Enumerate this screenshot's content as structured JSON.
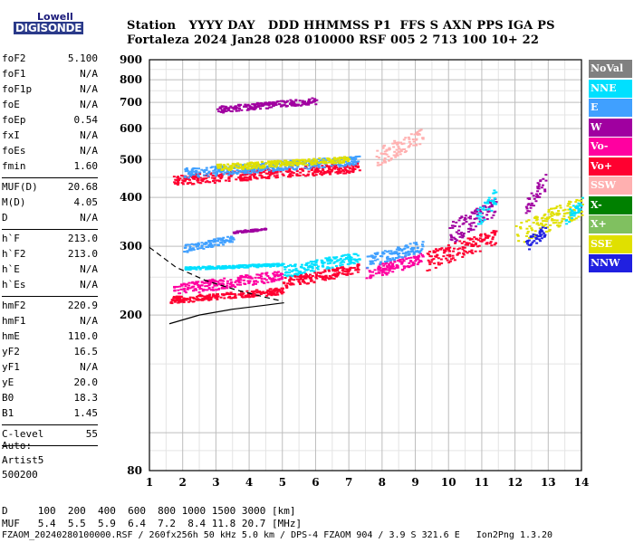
{
  "logo": {
    "line1": "Lowell",
    "line2": "DIGISONDE"
  },
  "header": {
    "line1": "Station   YYYY DAY   DDD HHMMSS P1  FFS S AXN PPS IGA PS",
    "line2": "Fortaleza 2024 Jan28 028 010000 RSF 005 2 713 100 10+ 22"
  },
  "params": [
    [
      [
        "foF2",
        "5.100"
      ],
      [
        "foF1",
        "N/A"
      ],
      [
        "foF1p",
        "N/A"
      ],
      [
        "foE",
        "N/A"
      ],
      [
        "foEp",
        "0.54"
      ],
      [
        "fxI",
        "N/A"
      ],
      [
        "foEs",
        "N/A"
      ],
      [
        "fmin",
        "1.60"
      ]
    ],
    [
      [
        "MUF(D)",
        "20.68"
      ],
      [
        "M(D)",
        "4.05"
      ],
      [
        "D",
        "N/A"
      ]
    ],
    [
      [
        "h`F",
        "213.0"
      ],
      [
        "h`F2",
        "213.0"
      ],
      [
        "h`E",
        "N/A"
      ],
      [
        "h`Es",
        "N/A"
      ]
    ],
    [
      [
        "hmF2",
        "220.9"
      ],
      [
        "hmF1",
        "N/A"
      ],
      [
        "hmE",
        "110.0"
      ],
      [
        "yF2",
        "16.5"
      ],
      [
        "yF1",
        "N/A"
      ],
      [
        "yE",
        "20.0"
      ],
      [
        "B0",
        "18.3"
      ],
      [
        "B1",
        "1.45"
      ]
    ],
    [
      [
        "C-level",
        "55"
      ]
    ]
  ],
  "auto": {
    "line1": "Auto:",
    "line2": "Artist5",
    "line3": "500200"
  },
  "footer": {
    "d_row": "D     100  200  400  600  800 1000 1500 3000 [km]",
    "muf_row": "MUF   5.4  5.5  5.9  6.4  7.2  8.4 11.8 20.7 [MHz]",
    "file_row": "FZAOM_20240280100000.RSF / 260fx256h 50 kHz 5.0 km / DPS-4 FZAOM 904 / 3.9 S 321.6 E   Ion2Png 1.3.20"
  },
  "legend": [
    {
      "label": "NoVal",
      "color": "#808080"
    },
    {
      "label": "NNE",
      "color": "#00e0ff"
    },
    {
      "label": "E",
      "color": "#40a0ff"
    },
    {
      "label": "W",
      "color": "#a000a0"
    },
    {
      "label": "Vo-",
      "color": "#ff00a0"
    },
    {
      "label": "Vo+",
      "color": "#ff0030"
    },
    {
      "label": "SSW",
      "color": "#ffb0b0"
    },
    {
      "label": "X-",
      "color": "#008000"
    },
    {
      "label": "X+",
      "color": "#80c060"
    },
    {
      "label": "SSE",
      "color": "#e0e000"
    },
    {
      "label": "NNW",
      "color": "#2020e0"
    }
  ],
  "chart_data": {
    "type": "scatter",
    "title": "",
    "xlabel": "",
    "ylabel": "",
    "xlim": [
      1,
      14
    ],
    "ylim": [
      80,
      900
    ],
    "x_ticks": [
      1,
      2,
      3,
      4,
      5,
      6,
      7,
      8,
      9,
      10,
      11,
      12,
      13,
      14
    ],
    "y_ticks": [
      80,
      200,
      300,
      400,
      500,
      600,
      700,
      800,
      900
    ],
    "grid": true,
    "y_scale": "log",
    "series": [
      {
        "name": "",
        "segments": [
          {
            "x0": 1.6,
            "x1": 5.0,
            "y0": 215,
            "y1": 235,
            "color": "#ff0030"
          },
          {
            "x0": 1.7,
            "x1": 5.0,
            "y0": 225,
            "y1": 260,
            "color": "#ff00a0"
          },
          {
            "x0": 2.0,
            "x1": 5.0,
            "y0": 262,
            "y1": 272,
            "color": "#00e0ff"
          },
          {
            "x0": 2.0,
            "x1": 3.5,
            "y0": 290,
            "y1": 320,
            "color": "#40a0ff"
          },
          {
            "x0": 3.5,
            "x1": 4.5,
            "y0": 325,
            "y1": 335,
            "color": "#a000a0"
          },
          {
            "x0": 5.0,
            "x1": 7.3,
            "y0": 235,
            "y1": 270,
            "color": "#ff0030"
          },
          {
            "x0": 5.0,
            "x1": 7.3,
            "y0": 250,
            "y1": 290,
            "color": "#00e0ff"
          },
          {
            "x0": 7.5,
            "x1": 9.2,
            "y0": 245,
            "y1": 290,
            "color": "#ff00a0"
          },
          {
            "x0": 7.5,
            "x1": 9.2,
            "y0": 265,
            "y1": 310,
            "color": "#40a0ff"
          },
          {
            "x0": 9.3,
            "x1": 11.4,
            "y0": 260,
            "y1": 330,
            "color": "#ff0030"
          },
          {
            "x0": 10.0,
            "x1": 11.4,
            "y0": 300,
            "y1": 400,
            "color": "#a000a0"
          },
          {
            "x0": 10.8,
            "x1": 11.4,
            "y0": 330,
            "y1": 420,
            "color": "#00e0ff"
          },
          {
            "x0": 12.0,
            "x1": 14.0,
            "y0": 300,
            "y1": 400,
            "color": "#e0e000"
          },
          {
            "x0": 12.3,
            "x1": 12.9,
            "y0": 290,
            "y1": 340,
            "color": "#2020e0"
          },
          {
            "x0": 12.3,
            "x1": 12.9,
            "y0": 360,
            "y1": 460,
            "color": "#a000a0"
          },
          {
            "x0": 13.5,
            "x1": 14.0,
            "y0": 340,
            "y1": 400,
            "color": "#00e0ff"
          },
          {
            "x0": 1.7,
            "x1": 7.3,
            "y0": 430,
            "y1": 490,
            "color": "#ff0030"
          },
          {
            "x0": 2.0,
            "x1": 7.3,
            "y0": 450,
            "y1": 510,
            "color": "#40a0ff"
          },
          {
            "x0": 3.0,
            "x1": 7.0,
            "y0": 470,
            "y1": 510,
            "color": "#e0e000"
          },
          {
            "x0": 7.8,
            "x1": 9.2,
            "y0": 480,
            "y1": 600,
            "color": "#ffb0b0"
          },
          {
            "x0": 3.0,
            "x1": 6.0,
            "y0": 660,
            "y1": 720,
            "color": "#a000a0"
          }
        ]
      }
    ],
    "profile_line": [
      [
        1.6,
        190
      ],
      [
        2.5,
        200
      ],
      [
        3.5,
        207
      ],
      [
        4.5,
        212
      ],
      [
        5.05,
        215
      ]
    ],
    "dashed_line": [
      [
        1.0,
        298
      ],
      [
        1.8,
        265
      ],
      [
        2.7,
        245
      ],
      [
        3.6,
        232
      ],
      [
        4.5,
        222
      ],
      [
        5.0,
        217
      ]
    ]
  }
}
